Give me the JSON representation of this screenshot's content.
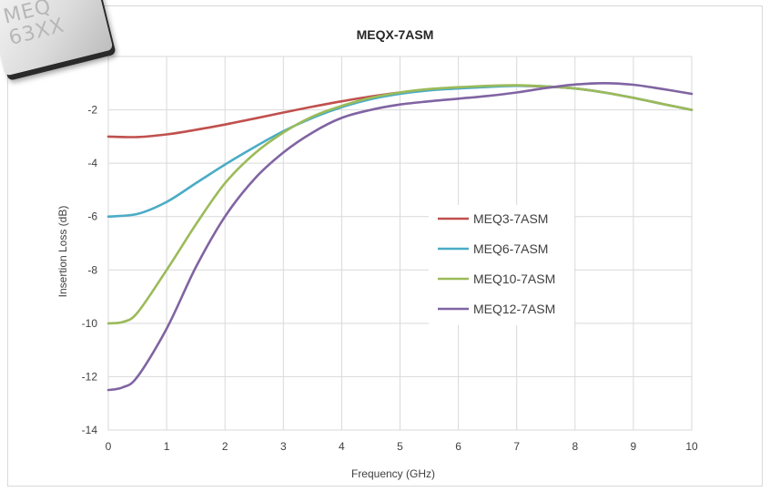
{
  "chart_data": {
    "type": "line",
    "title": "MEQX-7ASM",
    "xlabel": "Frequency (GHz)",
    "ylabel": "Insertion Loss (dB)",
    "xlim": [
      0,
      10
    ],
    "ylim": [
      -14,
      0
    ],
    "x_ticks": [
      "0",
      "1",
      "2",
      "3",
      "4",
      "5",
      "6",
      "7",
      "8",
      "9",
      "10"
    ],
    "y_ticks": [
      "-2",
      "-4",
      "-6",
      "-8",
      "-10",
      "-12",
      "-14"
    ],
    "grid": true,
    "legend_position": "center-right",
    "series": [
      {
        "name": "MEQ3-7ASM",
        "color": "#c0504d",
        "x": [
          0,
          0.5,
          1,
          1.5,
          2,
          2.5,
          3,
          3.5,
          4,
          4.5,
          5,
          5.5,
          6,
          6.5,
          7,
          7.5,
          8,
          8.5,
          9,
          9.5,
          10
        ],
        "y": [
          -3.0,
          -3.02,
          -2.92,
          -2.75,
          -2.55,
          -2.33,
          -2.1,
          -1.88,
          -1.68,
          -1.5,
          -1.35,
          -1.25,
          -1.18,
          -1.12,
          -1.1,
          -1.13,
          -1.2,
          -1.35,
          -1.55,
          -1.78,
          -2.0
        ]
      },
      {
        "name": "MEQ6-7ASM",
        "color": "#4bacc6",
        "x": [
          0,
          0.5,
          1,
          1.5,
          2,
          2.5,
          3,
          3.5,
          4,
          4.5,
          5,
          5.5,
          6,
          6.5,
          7,
          7.5,
          8,
          8.5,
          9,
          9.5,
          10
        ],
        "y": [
          -6.0,
          -5.9,
          -5.45,
          -4.75,
          -4.05,
          -3.4,
          -2.8,
          -2.3,
          -1.9,
          -1.6,
          -1.4,
          -1.27,
          -1.2,
          -1.14,
          -1.1,
          -1.12,
          -1.2,
          -1.35,
          -1.55,
          -1.78,
          -2.0
        ]
      },
      {
        "name": "MEQ10-7ASM",
        "color": "#9bbb59",
        "x": [
          0,
          0.25,
          0.5,
          1,
          1.5,
          2,
          2.5,
          3,
          3.5,
          4,
          4.5,
          5,
          5.5,
          6,
          6.5,
          7,
          7.5,
          8,
          8.5,
          9,
          9.5,
          10
        ],
        "y": [
          -10.0,
          -9.95,
          -9.6,
          -8.0,
          -6.3,
          -4.75,
          -3.65,
          -2.85,
          -2.25,
          -1.85,
          -1.55,
          -1.35,
          -1.22,
          -1.15,
          -1.1,
          -1.08,
          -1.12,
          -1.2,
          -1.35,
          -1.55,
          -1.78,
          -2.0
        ]
      },
      {
        "name": "MEQ12-7ASM",
        "color": "#8064a2",
        "x": [
          0,
          0.25,
          0.5,
          1,
          1.5,
          2,
          2.5,
          3,
          3.5,
          4,
          4.5,
          5,
          5.5,
          6,
          6.5,
          7,
          7.5,
          8,
          8.5,
          9,
          9.5,
          10
        ],
        "y": [
          -12.5,
          -12.4,
          -12.0,
          -10.2,
          -7.9,
          -6.0,
          -4.6,
          -3.6,
          -2.85,
          -2.3,
          -2.0,
          -1.8,
          -1.68,
          -1.58,
          -1.48,
          -1.35,
          -1.18,
          -1.05,
          -1.0,
          -1.06,
          -1.22,
          -1.4
        ]
      }
    ]
  },
  "chip_label": "MEQ\n63XX"
}
